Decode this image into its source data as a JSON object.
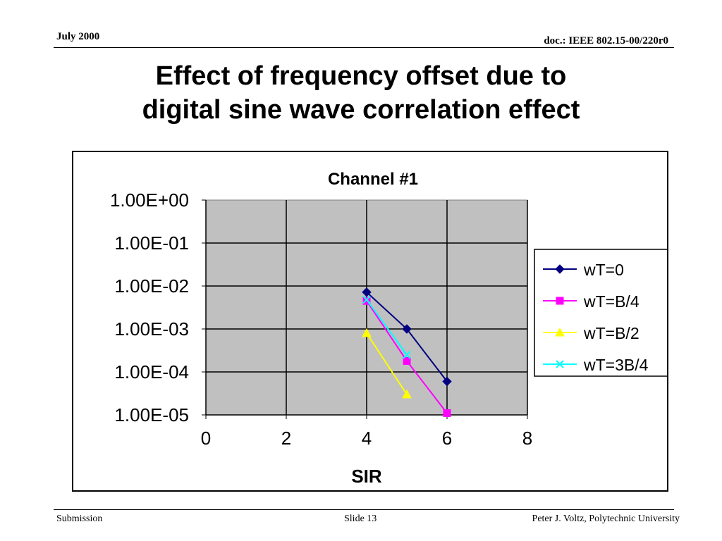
{
  "header": {
    "date": "July 2000",
    "doc_id": "doc.: IEEE 802.15-00/220r0"
  },
  "slide_title": {
    "line1": "Effect of frequency offset due to",
    "line2": "digital sine wave correlation effect"
  },
  "chart_data": {
    "type": "line",
    "title": "Channel #1",
    "xlabel": "SIR",
    "ylabel": "",
    "x_ticks": [
      "0",
      "2",
      "4",
      "6",
      "8"
    ],
    "xlim": [
      0,
      8
    ],
    "y_scale": "log",
    "ylim": [
      1e-05,
      1
    ],
    "y_ticks": [
      "1.00E+00",
      "1.00E-01",
      "1.00E-02",
      "1.00E-03",
      "1.00E-04",
      "1.00E-05"
    ],
    "grid": true,
    "plot_background": "#c0c0c0",
    "legend_position": "right",
    "series": [
      {
        "name": "wT=0",
        "color": "#000080",
        "marker": "diamond",
        "x": [
          4,
          5,
          6
        ],
        "y": [
          0.0072,
          0.001,
          6e-05
        ]
      },
      {
        "name": "wT=B/4",
        "color": "#ff00ff",
        "marker": "square",
        "x": [
          4,
          5,
          6
        ],
        "y": [
          0.0045,
          0.00018,
          1.1e-05
        ]
      },
      {
        "name": "wT=B/2",
        "color": "#ffff00",
        "marker": "triangle",
        "x": [
          4,
          5
        ],
        "y": [
          0.0008,
          3e-05
        ]
      },
      {
        "name": "wT=3B/4",
        "color": "#00ffff",
        "marker": "x",
        "x": [
          4,
          5
        ],
        "y": [
          0.0048,
          0.00025
        ]
      }
    ]
  },
  "footer": {
    "left": "Submission",
    "center": "Slide 13",
    "right": "Peter J. Voltz, Polytechnic University"
  }
}
